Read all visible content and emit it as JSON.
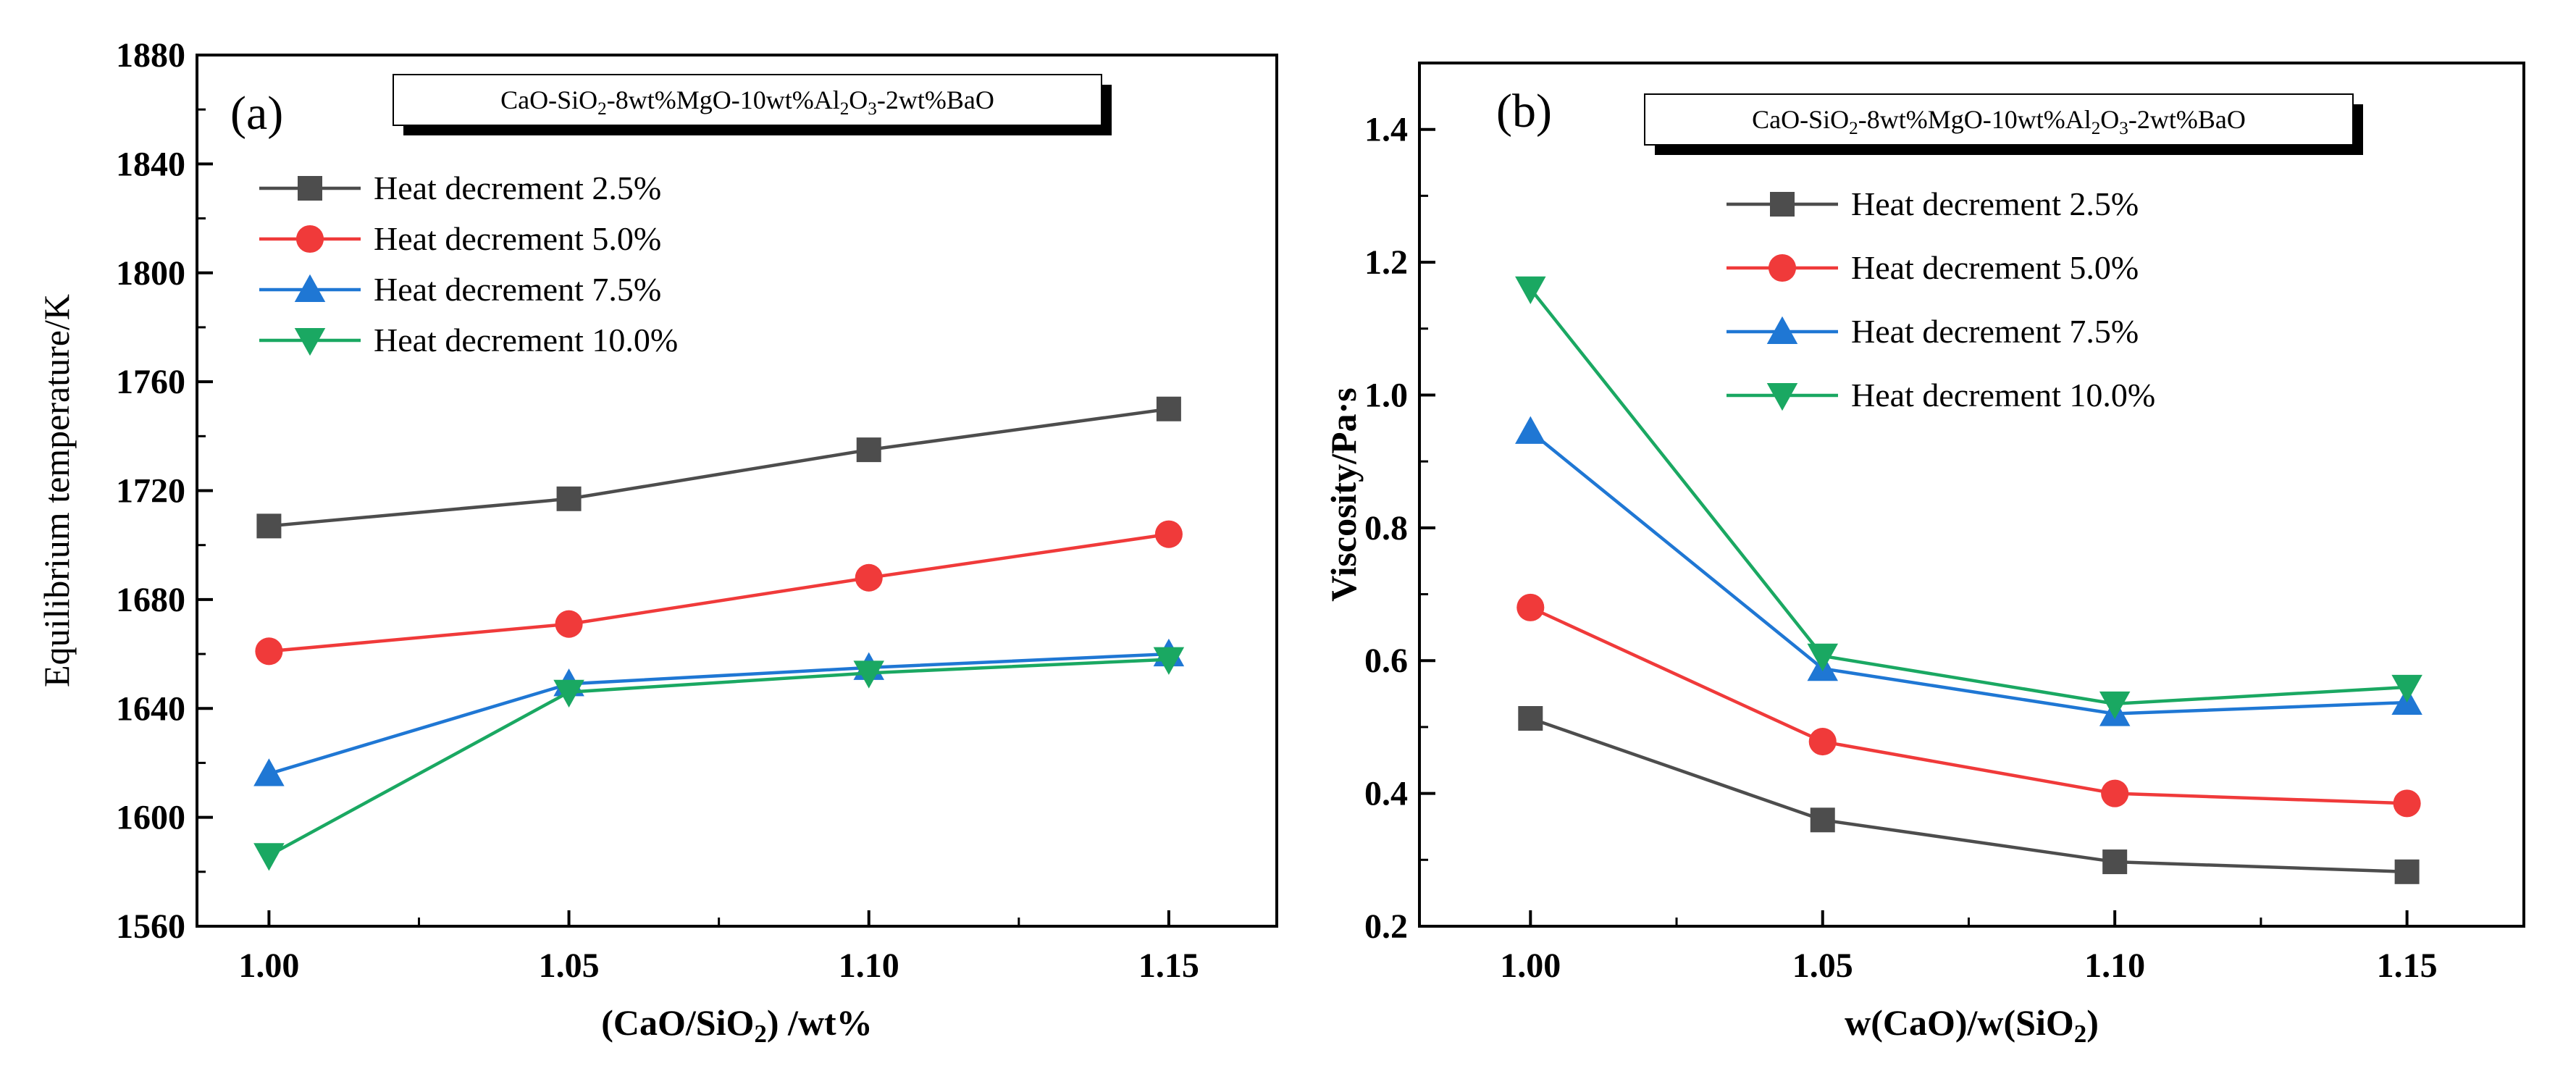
{
  "chart_data": [
    {
      "type": "line",
      "panel_label": "(a)",
      "title": "",
      "legend_box": {
        "parts": [
          {
            "t": "CaO-SiO"
          },
          {
            "t": "2",
            "sub": true
          },
          {
            "t": "-8wt%MgO-10wt%Al"
          },
          {
            "t": "2",
            "sub": true
          },
          {
            "t": "O"
          },
          {
            "t": "3",
            "sub": true
          },
          {
            "t": "-2wt%BaO"
          }
        ]
      },
      "xlabel": {
        "parts": [
          {
            "t": "(CaO/SiO"
          },
          {
            "t": "2",
            "sub": true
          },
          {
            "t": ") /wt%"
          }
        ]
      },
      "ylabel": "Equilibrium temperature/K",
      "x": [
        1.0,
        1.05,
        1.1,
        1.15
      ],
      "xticks": [
        "1.00",
        "1.05",
        "1.10",
        "1.15"
      ],
      "xlim": [
        0.988,
        1.168
      ],
      "ylim": [
        1560,
        1880
      ],
      "yticks": [
        "1560",
        "1600",
        "1640",
        "1680",
        "1720",
        "1760",
        "1800",
        "1840",
        "1880"
      ],
      "legend_position": "top-left",
      "series": [
        {
          "name": "Heat decrement 2.5%",
          "values": [
            1707,
            1717,
            1735,
            1750
          ],
          "color": "#4d4d4d",
          "marker": "square"
        },
        {
          "name": "Heat decrement 5.0%",
          "values": [
            1661,
            1671,
            1688,
            1704
          ],
          "color": "#f03a3a",
          "marker": "circle"
        },
        {
          "name": "Heat decrement 7.5%",
          "values": [
            1616,
            1649,
            1655,
            1660
          ],
          "color": "#1f77d4",
          "marker": "triangle-up"
        },
        {
          "name": "Heat decrement 10.0%",
          "values": [
            1586,
            1646,
            1653,
            1658
          ],
          "color": "#1aa862",
          "marker": "triangle-down"
        }
      ]
    },
    {
      "type": "line",
      "panel_label": "(b)",
      "title": "",
      "legend_box": {
        "parts": [
          {
            "t": "CaO-SiO"
          },
          {
            "t": "2",
            "sub": true
          },
          {
            "t": "-8wt%MgO-10wt%Al"
          },
          {
            "t": "2",
            "sub": true
          },
          {
            "t": "O"
          },
          {
            "t": "3",
            "sub": true
          },
          {
            "t": "-2wt%BaO"
          }
        ]
      },
      "xlabel": {
        "parts": [
          {
            "t": "w(CaO)/w(SiO"
          },
          {
            "t": "2",
            "sub": true
          },
          {
            "t": ")"
          }
        ]
      },
      "ylabel": "Viscosity/Pa·s",
      "x": [
        1.0,
        1.05,
        1.1,
        1.15
      ],
      "xticks": [
        "1.00",
        "1.05",
        "1.10",
        "1.15"
      ],
      "xlim": [
        0.981,
        1.17
      ],
      "ylim": [
        0.2,
        1.5
      ],
      "yticks": [
        "0.2",
        "0.4",
        "0.6",
        "0.8",
        "1.0",
        "1.2",
        "1.4"
      ],
      "legend_position": "top-center",
      "series": [
        {
          "name": "Heat decrement  2.5%",
          "values": [
            0.513,
            0.36,
            0.297,
            0.282
          ],
          "color": "#4d4d4d",
          "marker": "square"
        },
        {
          "name": "Heat decrement  5.0%",
          "values": [
            0.68,
            0.478,
            0.4,
            0.385
          ],
          "color": "#f03a3a",
          "marker": "circle"
        },
        {
          "name": "Heat decrement  7.5%",
          "values": [
            0.945,
            0.588,
            0.52,
            0.537
          ],
          "color": "#1f77d4",
          "marker": "triangle-up"
        },
        {
          "name": "Heat decrement  10.0%",
          "values": [
            1.16,
            0.607,
            0.535,
            0.56
          ],
          "color": "#1aa862",
          "marker": "triangle-down"
        }
      ]
    }
  ]
}
